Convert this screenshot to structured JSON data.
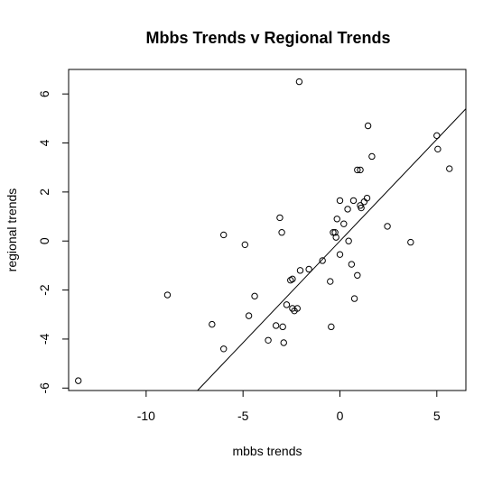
{
  "chart_data": {
    "type": "scatter",
    "title": "Mbbs Trends v Regional Trends",
    "xlabel": "mbbs trends",
    "ylabel": "regional trends",
    "xlim": [
      -14,
      6.5
    ],
    "ylim": [
      -6.1,
      7.0
    ],
    "xticks": [
      -10,
      -5,
      0,
      5
    ],
    "xtick_labels": [
      "-10",
      "-5",
      "0",
      "5"
    ],
    "yticks": [
      -6,
      -4,
      -2,
      0,
      2,
      4,
      6
    ],
    "ytick_labels": [
      "-6",
      "-4",
      "-2",
      "0",
      "2",
      "4",
      "6"
    ],
    "grid": false,
    "legend": "none",
    "reference_line": {
      "intercept": 0.0,
      "slope": 0.83
    },
    "points": [
      {
        "x": -13.5,
        "y": -5.7
      },
      {
        "x": -8.9,
        "y": -2.2
      },
      {
        "x": -6.6,
        "y": -3.4
      },
      {
        "x": -6.0,
        "y": 0.25
      },
      {
        "x": -6.0,
        "y": -4.4
      },
      {
        "x": -4.9,
        "y": -0.15
      },
      {
        "x": -4.7,
        "y": -3.05
      },
      {
        "x": -4.4,
        "y": -2.25
      },
      {
        "x": -3.7,
        "y": -4.05
      },
      {
        "x": -3.3,
        "y": -3.45
      },
      {
        "x": -3.1,
        "y": 0.95
      },
      {
        "x": -3.0,
        "y": 0.35
      },
      {
        "x": -2.95,
        "y": -3.5
      },
      {
        "x": -2.9,
        "y": -4.15
      },
      {
        "x": -2.75,
        "y": -2.6
      },
      {
        "x": -2.55,
        "y": -1.6
      },
      {
        "x": -2.45,
        "y": -1.55
      },
      {
        "x": -2.45,
        "y": -2.75
      },
      {
        "x": -2.35,
        "y": -2.85
      },
      {
        "x": -2.2,
        "y": -2.75
      },
      {
        "x": -2.1,
        "y": 6.5
      },
      {
        "x": -2.05,
        "y": -1.2
      },
      {
        "x": -1.6,
        "y": -1.15
      },
      {
        "x": -0.9,
        "y": -0.8
      },
      {
        "x": -0.5,
        "y": -1.65
      },
      {
        "x": -0.45,
        "y": -3.5
      },
      {
        "x": -0.35,
        "y": 0.35
      },
      {
        "x": -0.25,
        "y": 0.35
      },
      {
        "x": -0.2,
        "y": 0.15
      },
      {
        "x": -0.15,
        "y": 0.9
      },
      {
        "x": 0.0,
        "y": 1.65
      },
      {
        "x": 0.0,
        "y": -0.55
      },
      {
        "x": 0.2,
        "y": 0.7
      },
      {
        "x": 0.4,
        "y": 1.3
      },
      {
        "x": 0.45,
        "y": 0.0
      },
      {
        "x": 0.6,
        "y": -0.95
      },
      {
        "x": 0.7,
        "y": 1.65
      },
      {
        "x": 0.75,
        "y": -2.35
      },
      {
        "x": 0.9,
        "y": -1.4
      },
      {
        "x": 0.9,
        "y": 2.9
      },
      {
        "x": 1.05,
        "y": 2.9
      },
      {
        "x": 1.05,
        "y": 1.45
      },
      {
        "x": 1.1,
        "y": 1.35
      },
      {
        "x": 1.25,
        "y": 1.6
      },
      {
        "x": 1.4,
        "y": 1.75
      },
      {
        "x": 1.45,
        "y": 4.7
      },
      {
        "x": 1.65,
        "y": 3.45
      },
      {
        "x": 2.45,
        "y": 0.6
      },
      {
        "x": 3.65,
        "y": -0.05
      },
      {
        "x": 5.0,
        "y": 4.3
      },
      {
        "x": 5.05,
        "y": 3.75
      },
      {
        "x": 5.65,
        "y": 2.95
      }
    ]
  }
}
